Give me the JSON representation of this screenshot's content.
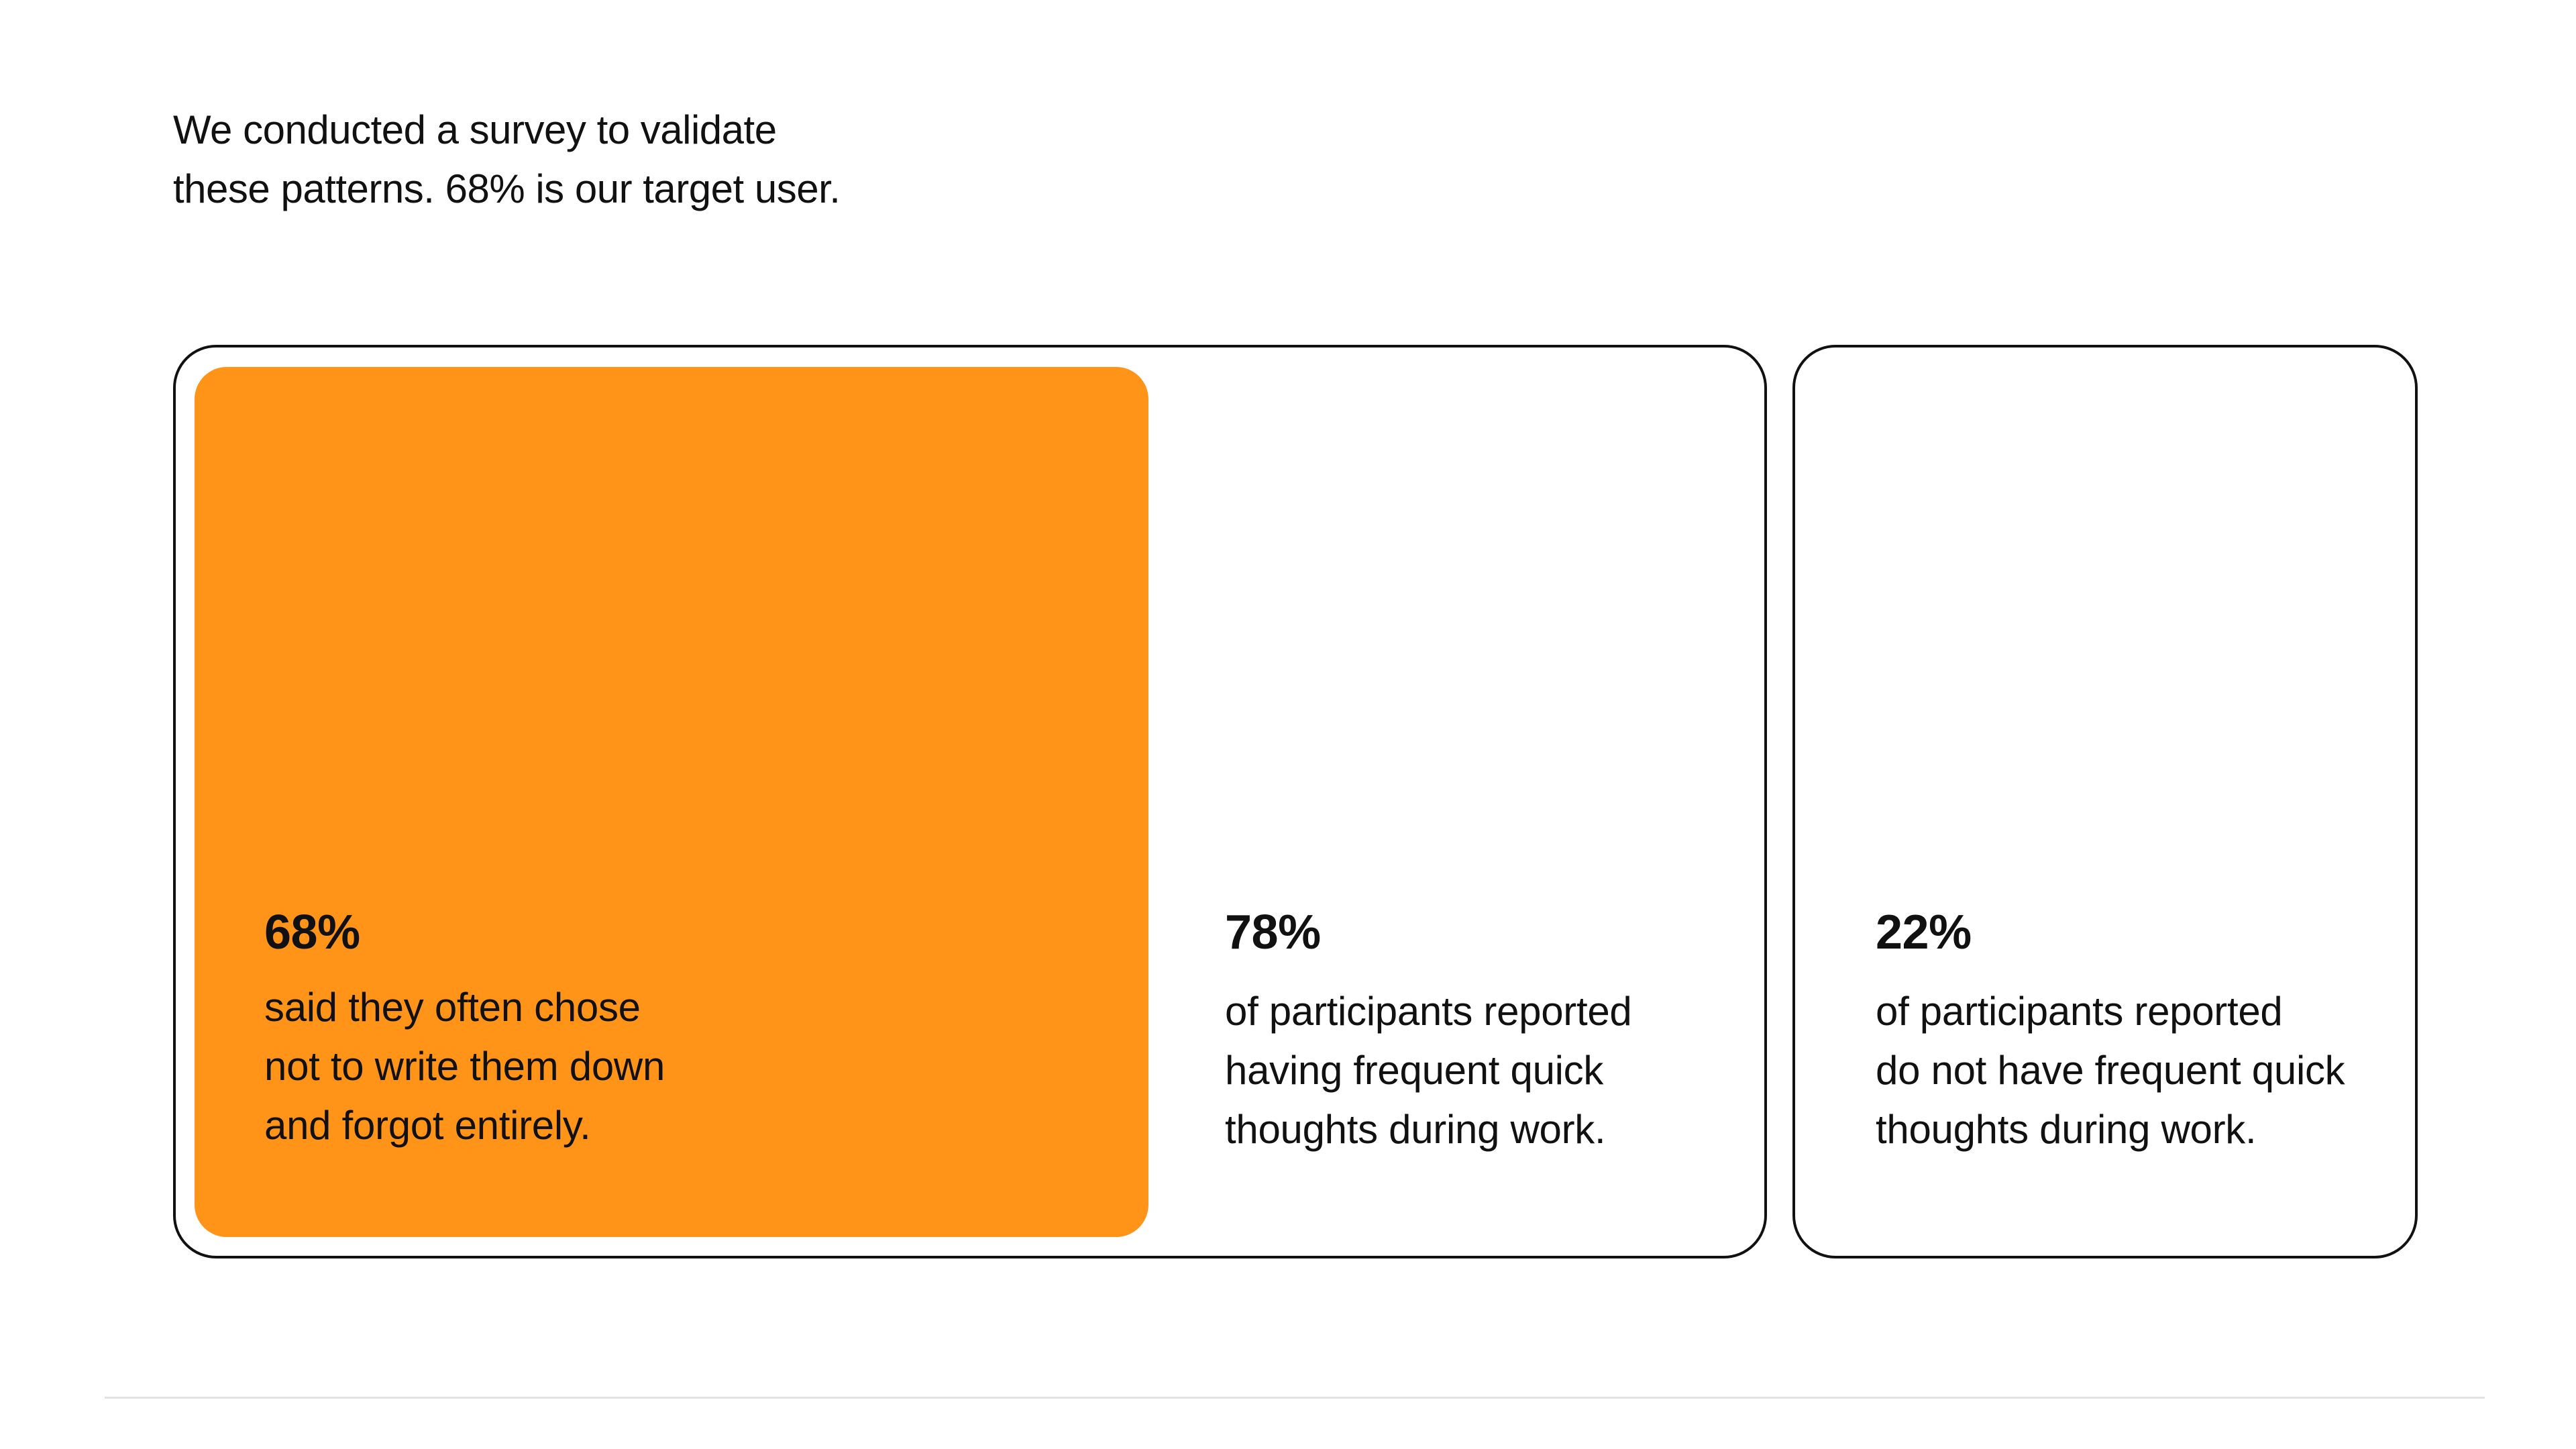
{
  "intro": {
    "lines": [
      "We conducted a survey to validate",
      "these patterns. 68% is our target user."
    ]
  },
  "colors": {
    "accent": "#FF9419",
    "border": "#111111",
    "divider": "#E2E2E2"
  },
  "stats": [
    {
      "value": "68%",
      "lines": [
        "said they often chose",
        "not to write them down",
        "and forgot entirely."
      ],
      "highlighted": true
    },
    {
      "value": "78%",
      "lines": [
        "of participants reported",
        "having frequent quick",
        "thoughts during work."
      ],
      "highlighted": false
    },
    {
      "value": "22%",
      "lines": [
        "of participants reported",
        "do not have frequent quick",
        "thoughts during work."
      ],
      "highlighted": false
    }
  ]
}
